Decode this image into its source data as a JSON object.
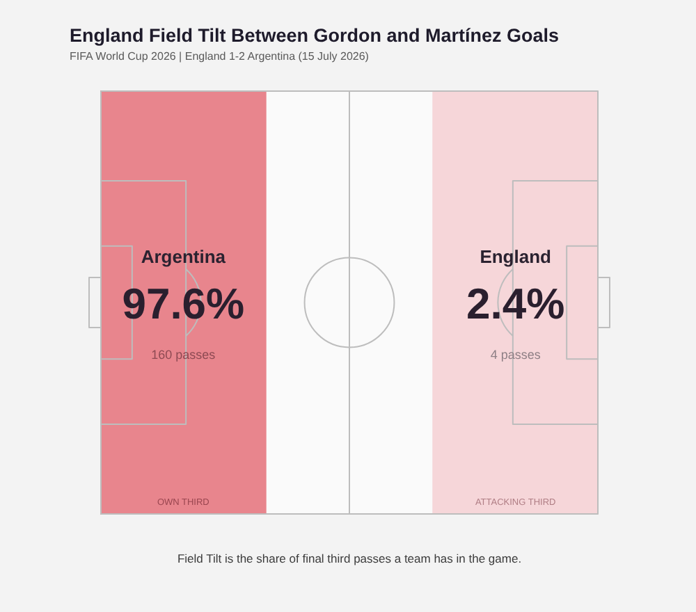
{
  "chart_data": {
    "type": "other",
    "title": "England Field Tilt Between Gordon and Martínez Goals",
    "subtitle": "FIFA World Cup 2026 | England 1-2 Argentina (15 July 2026)",
    "categories": [
      "Argentina",
      "England"
    ],
    "values": [
      97.6,
      2.4
    ],
    "value_labels": [
      "97.6%",
      "2.4%"
    ],
    "colors": [
      "#e8858d",
      "#f6d6d9"
    ],
    "annotations": [
      "160 passes",
      "4 passes",
      "OWN THIRD",
      "ATTACKING THIRD",
      "Field Tilt is the share of final third passes a team has in the game."
    ]
  }
}
